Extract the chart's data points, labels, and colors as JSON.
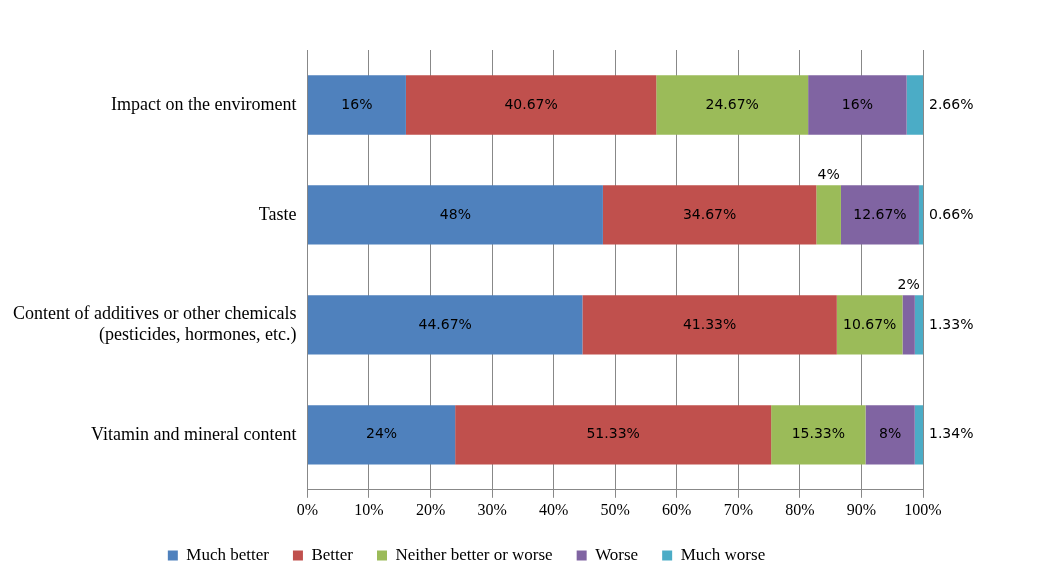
{
  "chart_data": {
    "type": "bar",
    "orientation": "horizontal",
    "stacked": true,
    "categories": [
      "Impact on the enviroment",
      "Taste",
      "Content of additives or other chemicals\n(pesticides, hormones, etc.)",
      "Vitamin and mineral content"
    ],
    "series": [
      {
        "name": "Much better",
        "color": "#4f81bd",
        "values": [
          16,
          48,
          44.67,
          24
        ],
        "value_labels": [
          "16%",
          "48%",
          "44.67%",
          "24%"
        ]
      },
      {
        "name": "Better",
        "color": "#c0504d",
        "values": [
          40.67,
          34.67,
          41.33,
          51.33
        ],
        "value_labels": [
          "40.67%",
          "34.67%",
          "41.33%",
          "51.33%"
        ]
      },
      {
        "name": "Neither better or worse",
        "color": "#9bbb59",
        "values": [
          24.67,
          4,
          10.67,
          15.33
        ],
        "value_labels": [
          "24.67%",
          "4%",
          "10.67%",
          "15.33%"
        ]
      },
      {
        "name": "Worse",
        "color": "#8064a2",
        "values": [
          16,
          12.67,
          2,
          8
        ],
        "value_labels": [
          "16%",
          "12.67%",
          "2%",
          "8%"
        ]
      },
      {
        "name": "Much worse",
        "color": "#4bacc6",
        "values": [
          2.66,
          0.66,
          1.33,
          1.34
        ],
        "value_labels": [
          "2.66%",
          "0.66%",
          "1.33%",
          "1.34%"
        ]
      }
    ],
    "xlim": [
      0,
      100
    ],
    "xticks": [
      {
        "value": 0,
        "label": "0%"
      },
      {
        "value": 10,
        "label": "10%"
      },
      {
        "value": 20,
        "label": "20%"
      },
      {
        "value": 30,
        "label": "30%"
      },
      {
        "value": 40,
        "label": "40%"
      },
      {
        "value": 50,
        "label": "50%"
      },
      {
        "value": 60,
        "label": "60%"
      },
      {
        "value": 70,
        "label": "70%"
      },
      {
        "value": 80,
        "label": "80%"
      },
      {
        "value": 90,
        "label": "90%"
      },
      {
        "value": 100,
        "label": "100%"
      }
    ],
    "grid": "x",
    "legend": "bottom"
  }
}
